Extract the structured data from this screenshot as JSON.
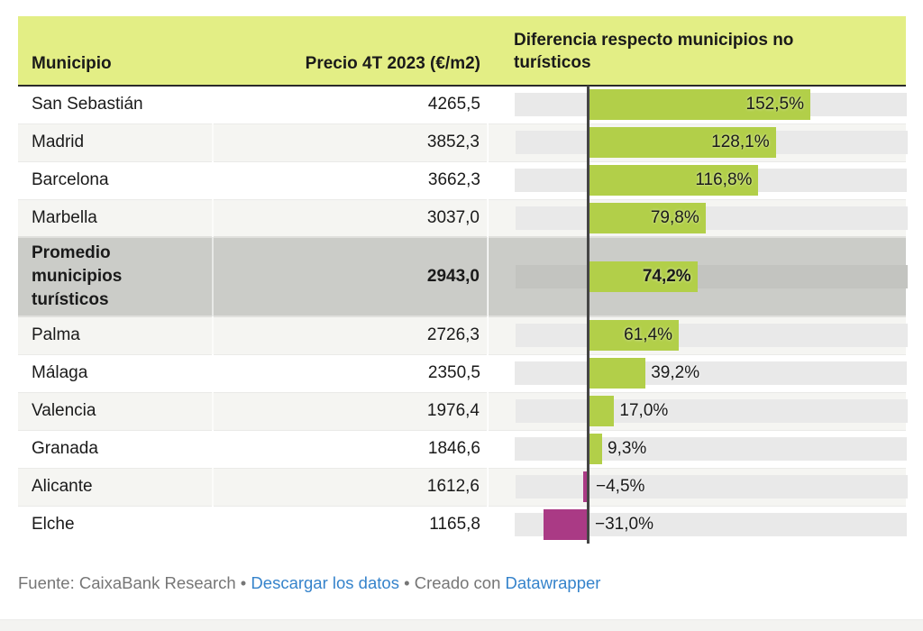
{
  "colors": {
    "header_bg": "#e3ee85",
    "bar_positive": "#b2cf49",
    "bar_negative": "#aa3a85",
    "highlight_row_bg": "#cbccc8",
    "zebra_row_bg": "#f5f5f2",
    "bar_track": "#e9e9e9",
    "bar_track_highlight": "#c3c4c0",
    "zero_line": "#454545",
    "link": "#3583cb",
    "footer_text": "#767676"
  },
  "table": {
    "columns": [
      "Municipio",
      "Precio 4T 2023 (€/m2)",
      "Diferencia respecto municipios no turísticos"
    ],
    "rows": [
      {
        "municipio": "San Sebastián",
        "precio": "4265,5",
        "diff_pct": 152.5,
        "diff_label": "152,5%",
        "highlight": false
      },
      {
        "municipio": "Madrid",
        "precio": "3852,3",
        "diff_pct": 128.1,
        "diff_label": "128,1%",
        "highlight": false
      },
      {
        "municipio": "Barcelona",
        "precio": "3662,3",
        "diff_pct": 116.8,
        "diff_label": "116,8%",
        "highlight": false
      },
      {
        "municipio": "Marbella",
        "precio": "3037,0",
        "diff_pct": 79.8,
        "diff_label": "79,8%",
        "highlight": false
      },
      {
        "municipio": "Promedio municipios turísticos",
        "precio": "2943,0",
        "diff_pct": 74.2,
        "diff_label": "74,2%",
        "highlight": true
      },
      {
        "municipio": "Palma",
        "precio": "2726,3",
        "diff_pct": 61.4,
        "diff_label": "61,4%",
        "highlight": false
      },
      {
        "municipio": "Málaga",
        "precio": "2350,5",
        "diff_pct": 39.2,
        "diff_label": "39,2%",
        "highlight": false
      },
      {
        "municipio": "Valencia",
        "precio": "1976,4",
        "diff_pct": 17.0,
        "diff_label": "17,0%",
        "highlight": false
      },
      {
        "municipio": "Granada",
        "precio": "1846,6",
        "diff_pct": 9.3,
        "diff_label": "9,3%",
        "highlight": false
      },
      {
        "municipio": "Alicante",
        "precio": "1612,6",
        "diff_pct": -4.5,
        "diff_label": "−4,5%",
        "highlight": false
      },
      {
        "municipio": "Elche",
        "precio": "1165,8",
        "diff_pct": -31.0,
        "diff_label": "−31,0%",
        "highlight": false
      }
    ]
  },
  "footer": {
    "source": "Fuente: CaixaBank Research",
    "separator": "•",
    "download_label": "Descargar los datos",
    "created_with": "Creado con",
    "datawrapper_label": "Datawrapper"
  },
  "chart_data": {
    "type": "table",
    "title": "",
    "columns": [
      "Municipio",
      "Precio 4T 2023 (€/m2)",
      "Diferencia respecto municipios no turísticos"
    ],
    "categories": [
      "San Sebastián",
      "Madrid",
      "Barcelona",
      "Marbella",
      "Promedio municipios turísticos",
      "Palma",
      "Málaga",
      "Valencia",
      "Granada",
      "Alicante",
      "Elche"
    ],
    "series": [
      {
        "name": "Precio 4T 2023 (€/m2)",
        "values": [
          4265.5,
          3852.3,
          3662.3,
          3037.0,
          2943.0,
          2726.3,
          2350.5,
          1976.4,
          1846.6,
          1612.6,
          1165.8
        ]
      },
      {
        "name": "Diferencia respecto municipios no turísticos (%)",
        "values": [
          152.5,
          128.1,
          116.8,
          79.8,
          74.2,
          61.4,
          39.2,
          17.0,
          9.3,
          -4.5,
          -31.0
        ]
      }
    ],
    "bar_axis": {
      "min_pct": -50.8,
      "max_pct": 218.8,
      "zero_marker": true
    },
    "legend_position": "none",
    "grid": false
  }
}
